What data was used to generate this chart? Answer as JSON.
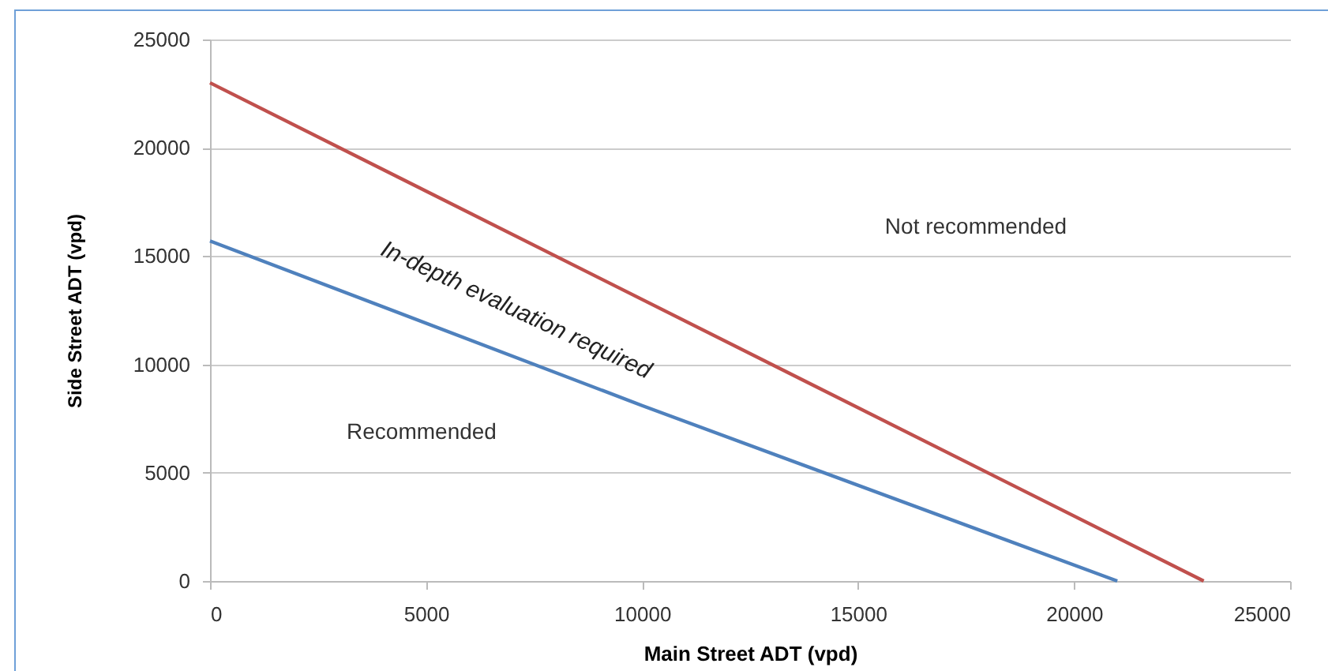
{
  "chart_data": {
    "type": "line",
    "xlabel": "Main Street ADT (vpd)",
    "ylabel": "Side Street ADT (vpd)",
    "series": [
      {
        "color": "#c0504d",
        "x": [
          0,
          23000
        ],
        "values": [
          23000,
          0
        ]
      },
      {
        "color": "#4f81bd",
        "x": [
          0,
          10000,
          21000
        ],
        "values": [
          15700,
          8100,
          0
        ]
      }
    ],
    "xlim": [
      0,
      25000
    ],
    "ylim": [
      0,
      25000
    ],
    "xticks": [
      0,
      5000,
      10000,
      15000,
      20000,
      25000
    ],
    "yticks": [
      0,
      5000,
      10000,
      15000,
      20000,
      25000
    ],
    "grid": "y",
    "marker": "none",
    "line_style": "solid",
    "annotations": [
      "In-depth evaluation required",
      "Recommended",
      "Not recommended"
    ]
  }
}
